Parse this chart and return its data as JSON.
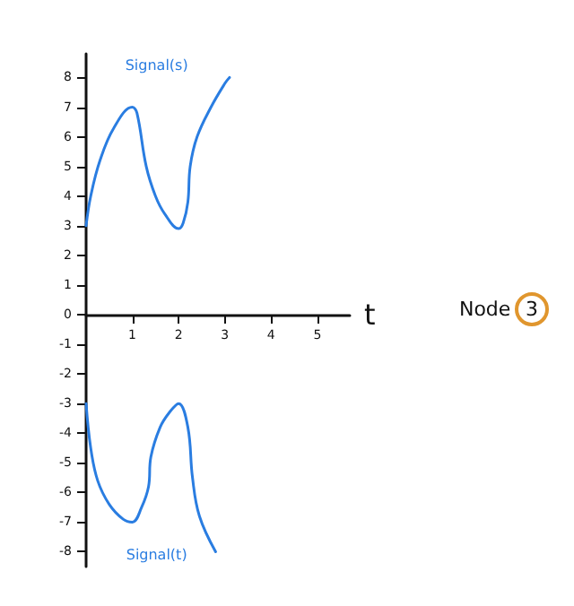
{
  "chart_data": {
    "type": "line",
    "xlabel": "t",
    "annotations": [
      "Node 3"
    ],
    "xlim": [
      0,
      5.7
    ],
    "xticks": [
      1,
      2,
      3,
      4,
      5
    ],
    "ylim": [
      -8.5,
      8.8
    ],
    "yticks": [
      -8,
      -7,
      -6,
      -5,
      -4,
      -3,
      -2,
      -1,
      0,
      1,
      2,
      3,
      4,
      5,
      6,
      7,
      8
    ],
    "grid": false,
    "legend": false,
    "line_style": "solid",
    "series": [
      {
        "name": "Signal(s)",
        "color": "#2a7de1",
        "x": [
          0,
          0.1,
          0.3,
          0.6,
          1.0,
          1.1,
          1.3,
          1.5,
          1.7,
          2.0,
          2.1,
          2.2,
          2.25,
          2.4,
          2.7,
          3.0,
          3.1
        ],
        "values": [
          3,
          4,
          5.2,
          6.3,
          7,
          6.8,
          5,
          4,
          3.4,
          2.9,
          3.1,
          3.8,
          5,
          6,
          7,
          7.8,
          8
        ]
      },
      {
        "name": "Signal(t)",
        "color": "#2a7de1",
        "x": [
          0,
          0.1,
          0.25,
          0.5,
          0.8,
          1.0,
          1.2,
          1.35,
          1.4,
          1.6,
          1.8,
          2.0,
          2.2,
          2.3,
          2.45,
          2.8
        ],
        "values": [
          -3,
          -4.5,
          -5.6,
          -6.4,
          -6.9,
          -7,
          -6.5,
          -5.8,
          -4.8,
          -3.8,
          -3.3,
          -3,
          -3.8,
          -5.5,
          -6.8,
          -8
        ]
      }
    ]
  }
}
